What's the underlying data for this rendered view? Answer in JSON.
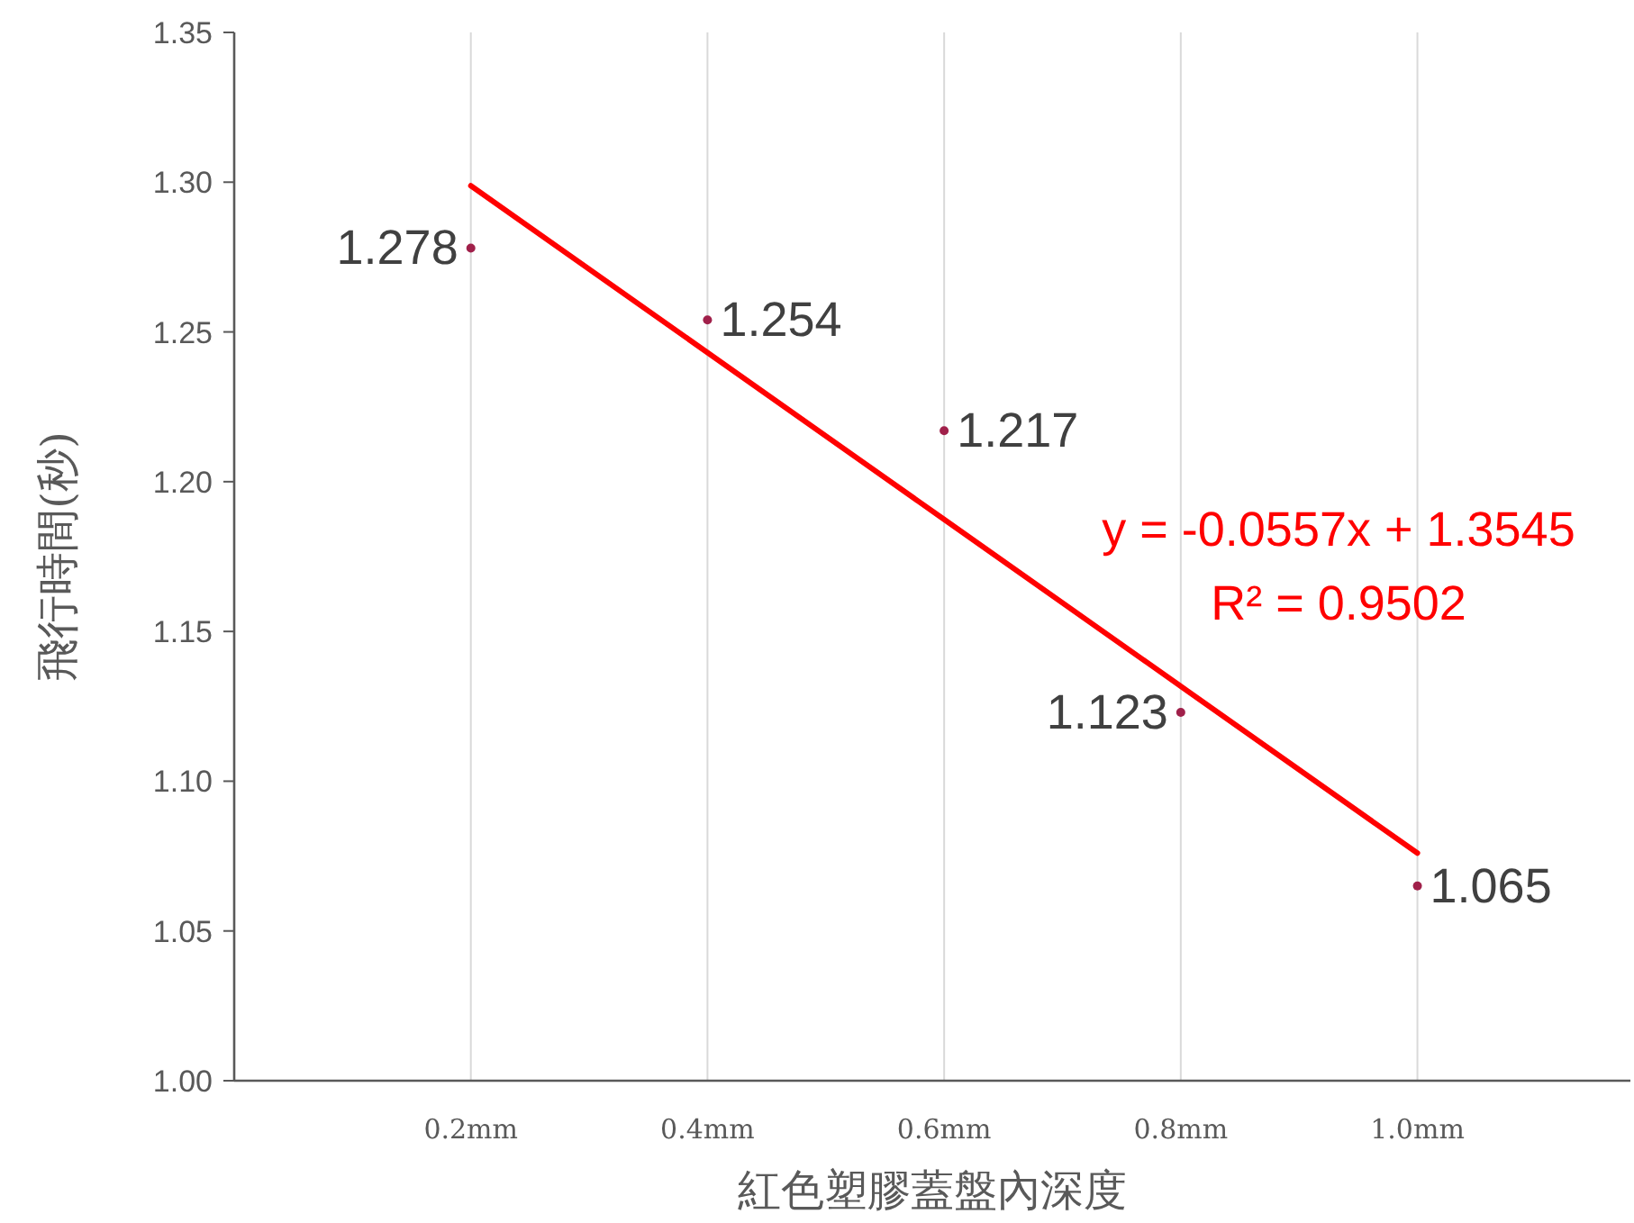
{
  "chart_data": {
    "type": "scatter",
    "xlabel": "紅色塑膠蓋盤內深度",
    "ylabel": "飛行時間(秒)",
    "categories": [
      "0.2mm",
      "0.4mm",
      "0.6mm",
      "0.8mm",
      "1.0mm"
    ],
    "series": [
      {
        "color": "#a0204a",
        "values": [
          1.278,
          1.254,
          1.217,
          1.123,
          1.065
        ],
        "data_labels": true
      },
      {
        "type": "line",
        "color": "#ff0000",
        "values": [
          1.2988,
          1.2431,
          1.1874,
          1.1317,
          1.076
        ]
      }
    ],
    "ylim": [
      1.0,
      1.35
    ],
    "yticks": [
      {
        "value": 1.0,
        "label": "1.00"
      },
      {
        "value": 1.05,
        "label": "1.05"
      },
      {
        "value": 1.1,
        "label": "1.10"
      },
      {
        "value": 1.15,
        "label": "1.15"
      },
      {
        "value": 1.2,
        "label": "1.20"
      },
      {
        "value": 1.25,
        "label": "1.25"
      },
      {
        "value": 1.3,
        "label": "1.30"
      },
      {
        "value": 1.35,
        "label": "1.35"
      }
    ],
    "grid": "x",
    "annotations": [
      "y = -0.0557x + 1.3545",
      "R² = 0.9502"
    ]
  }
}
